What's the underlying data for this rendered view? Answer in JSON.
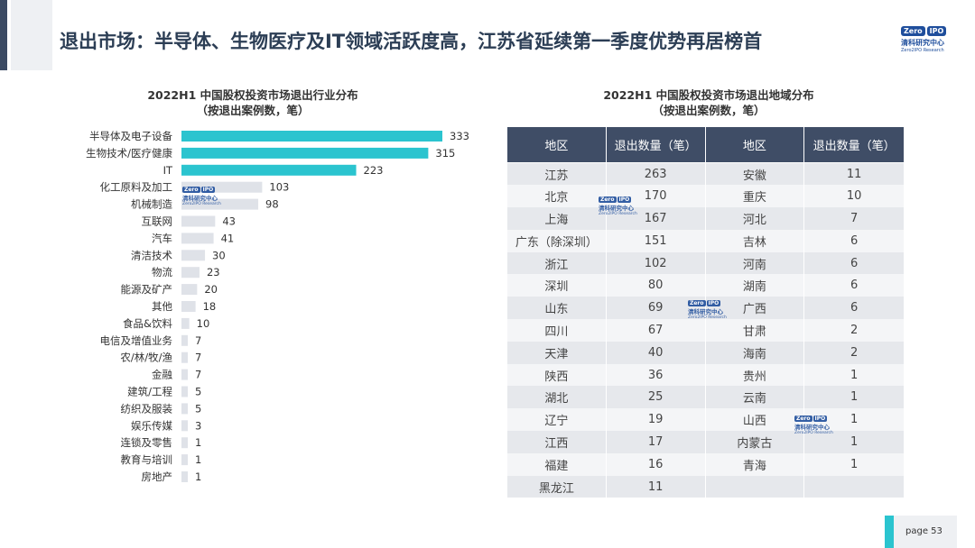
{
  "header": {
    "title": "退出市场：半导体、生物医疗及IT领域活跃度高，江苏省延续第一季度优势再居榜首",
    "brand_logo_a": "Zero",
    "brand_logo_b": "IPO",
    "brand_cn": "清科研究中心",
    "brand_en": "Zero2IPO Research"
  },
  "watermark": {
    "logo_a": "Zero",
    "logo_b": "IPO",
    "cn": "清科研究中心",
    "en": "Zero2IPO Research"
  },
  "chart_data": [
    {
      "type": "bar",
      "orientation": "horizontal",
      "title": "2022H1 中国股权投资市场退出行业分布",
      "subtitle": "（按退出案例数，笔）",
      "categories": [
        "半导体及电子设备",
        "生物技术/医疗健康",
        "IT",
        "化工原料及加工",
        "机械制造",
        "互联网",
        "汽车",
        "清洁技术",
        "物流",
        "能源及矿产",
        "其他",
        "食品&饮料",
        "电信及增值业务",
        "农/林/牧/渔",
        "金融",
        "建筑/工程",
        "纺织及服装",
        "娱乐传媒",
        "连锁及零售",
        "教育与培训",
        "房地产"
      ],
      "values": [
        333,
        315,
        223,
        103,
        98,
        43,
        41,
        30,
        23,
        20,
        18,
        10,
        7,
        7,
        7,
        5,
        5,
        3,
        1,
        1,
        1
      ],
      "highlight_count": 3,
      "highlight_color": "#2bc4cf",
      "base_color": "#dfe2e8"
    },
    {
      "type": "table",
      "title": "2022H1 中国股权投资市场退出地域分布",
      "subtitle": "（按退出案例数，笔）",
      "columns": [
        "地区",
        "退出数量（笔）",
        "地区",
        "退出数量（笔）"
      ],
      "rows": [
        [
          "江苏",
          "263",
          "安徽",
          "11"
        ],
        [
          "北京",
          "170",
          "重庆",
          "10"
        ],
        [
          "上海",
          "167",
          "河北",
          "7"
        ],
        [
          "广东（除深圳）",
          "151",
          "吉林",
          "6"
        ],
        [
          "浙江",
          "102",
          "河南",
          "6"
        ],
        [
          "深圳",
          "80",
          "湖南",
          "6"
        ],
        [
          "山东",
          "69",
          "广西",
          "6"
        ],
        [
          "四川",
          "67",
          "甘肃",
          "2"
        ],
        [
          "天津",
          "40",
          "海南",
          "2"
        ],
        [
          "陕西",
          "36",
          "贵州",
          "1"
        ],
        [
          "湖北",
          "25",
          "云南",
          "1"
        ],
        [
          "辽宁",
          "19",
          "山西",
          "1"
        ],
        [
          "江西",
          "17",
          "内蒙古",
          "1"
        ],
        [
          "福建",
          "16",
          "青海",
          "1"
        ],
        [
          "黑龙江",
          "11",
          "",
          ""
        ]
      ]
    }
  ],
  "footer": {
    "page_label": "page  53",
    "accent": "#2bc4cf"
  }
}
